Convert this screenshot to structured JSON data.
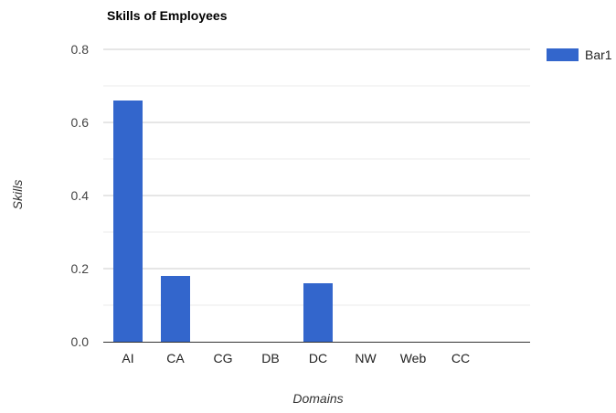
{
  "chart_data": {
    "type": "bar",
    "title": "Skills of Employees",
    "xlabel": "Domains",
    "ylabel": "Skills",
    "categories": [
      "AI",
      "CA",
      "CG",
      "DB",
      "DC",
      "NW",
      "Web",
      "CC"
    ],
    "series": [
      {
        "name": "Bar1",
        "values": [
          0.66,
          0.18,
          0,
          0,
          0.16,
          0,
          0,
          0
        ]
      }
    ],
    "ylim": [
      0,
      0.8
    ],
    "yticks": [
      "0.0",
      "0.2",
      "0.4",
      "0.6",
      "0.8"
    ],
    "grid": true,
    "legend_position": "top-right",
    "colors": {
      "bar": "#3366cc",
      "grid_major": "#cccccc",
      "grid_minor": "#ebebeb",
      "axis": "#333333"
    }
  }
}
